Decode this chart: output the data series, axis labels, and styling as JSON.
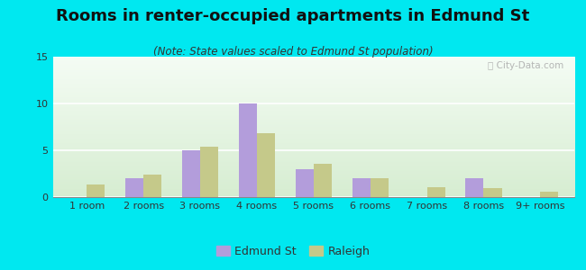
{
  "title": "Rooms in renter-occupied apartments in Edmund St",
  "subtitle": "(Note: State values scaled to Edmund St population)",
  "categories": [
    "1 room",
    "2 rooms",
    "3 rooms",
    "4 rooms",
    "5 rooms",
    "6 rooms",
    "7 rooms",
    "8 rooms",
    "9+ rooms"
  ],
  "edmund_values": [
    0,
    2,
    5,
    10,
    3,
    2,
    0,
    2,
    0
  ],
  "raleigh_values": [
    1.3,
    2.4,
    5.4,
    6.8,
    3.6,
    2.0,
    1.1,
    1.0,
    0.6
  ],
  "edmund_color": "#b39ddb",
  "raleigh_color": "#c5c98a",
  "background_outer": "#00e8f0",
  "ylim": [
    0,
    15
  ],
  "yticks": [
    0,
    5,
    10,
    15
  ],
  "bar_width": 0.32,
  "title_fontsize": 13,
  "subtitle_fontsize": 8.5,
  "tick_fontsize": 8,
  "legend_fontsize": 9
}
